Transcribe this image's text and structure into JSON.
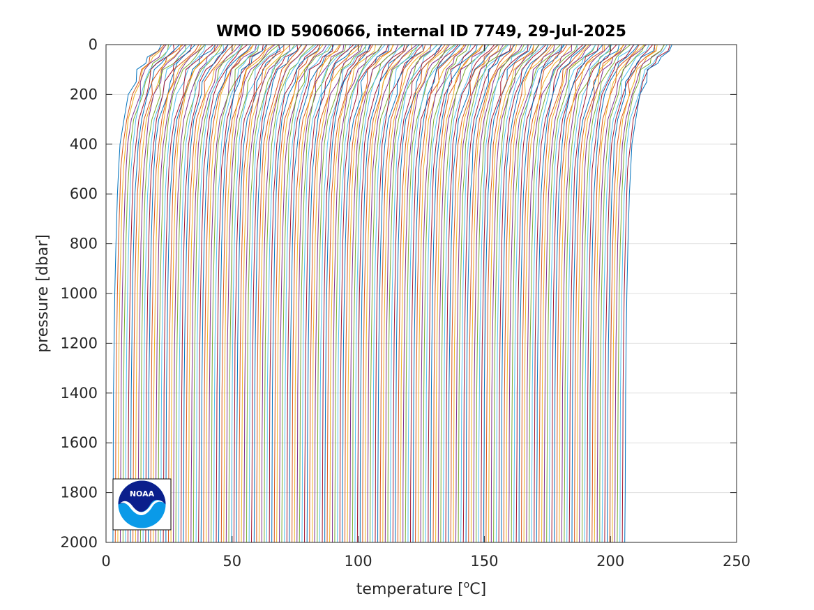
{
  "chart_data": {
    "type": "line",
    "title": "WMO ID 5906066, internal ID 7749, 29-Jul-2025",
    "xlabel": "temperature [°C]",
    "xlabel_parts": {
      "pre": "temperature [",
      "sup": "o",
      "post": "C]"
    },
    "ylabel": "pressure [dbar]",
    "xlim": [
      0,
      250
    ],
    "ylim": [
      0,
      2000
    ],
    "y_reversed": true,
    "xticks": [
      0,
      50,
      100,
      150,
      200,
      250
    ],
    "yticks": [
      0,
      200,
      400,
      600,
      800,
      1000,
      1200,
      1400,
      1600,
      1800,
      2000
    ],
    "grid": true,
    "profile_count": 204,
    "profile_offset_step": 1,
    "profile_template": {
      "pressure": [
        0,
        25,
        50,
        75,
        100,
        150,
        200,
        300,
        400,
        500,
        600,
        800,
        1000,
        1200,
        1400,
        1600,
        1800,
        2000
      ],
      "temperature": [
        21.5,
        20.0,
        17.0,
        15.0,
        12.7,
        11.0,
        9.6,
        7.0,
        5.7,
        5.0,
        4.5,
        3.9,
        3.5,
        3.2,
        3.0,
        2.9,
        2.8,
        2.7
      ]
    },
    "series_colors": [
      "#0072bd",
      "#d95319",
      "#edb120",
      "#7e2f8e",
      "#77ac30",
      "#4dbeee",
      "#a2142f"
    ]
  },
  "logo": {
    "text": "NOAA",
    "colors": {
      "navy": "#0b1f8c",
      "sky": "#0a9ae8",
      "white": "#ffffff"
    }
  },
  "colors": {
    "axes": "#262626",
    "grid": "#dfdfdf",
    "background": "#ffffff"
  }
}
